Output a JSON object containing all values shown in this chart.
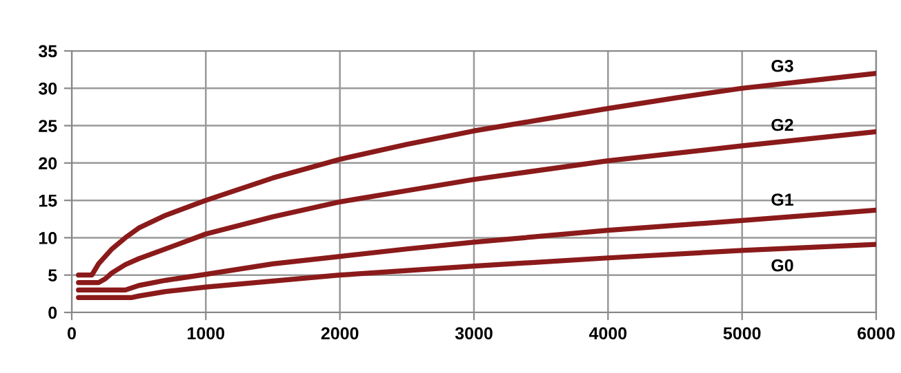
{
  "chart_data": {
    "type": "line",
    "xlim": [
      0,
      6000
    ],
    "ylim": [
      0,
      35
    ],
    "xticks": [
      0,
      1000,
      2000,
      3000,
      4000,
      5000,
      6000
    ],
    "yticks": [
      0,
      5,
      10,
      15,
      20,
      25,
      30,
      35
    ],
    "grid": true,
    "legend": false,
    "marker": "none",
    "line_style": "solid",
    "series": [
      {
        "name": "G3",
        "color": "#8b1a1a",
        "x": [
          50,
          150,
          200,
          300,
          400,
          500,
          700,
          1000,
          1500,
          2000,
          2500,
          3000,
          3500,
          4000,
          4500,
          5000,
          5500,
          6000
        ],
        "values": [
          5,
          5,
          6.5,
          8.5,
          10,
          11.3,
          13,
          15,
          18,
          20.5,
          22.5,
          24.3,
          25.8,
          27.3,
          28.7,
          30,
          31,
          32
        ]
      },
      {
        "name": "G2",
        "color": "#8b1a1a",
        "x": [
          50,
          200,
          250,
          300,
          400,
          500,
          700,
          1000,
          1500,
          2000,
          2500,
          3000,
          4000,
          5000,
          6000
        ],
        "values": [
          4,
          4,
          4.5,
          5.3,
          6.4,
          7.2,
          8.5,
          10.5,
          12.8,
          14.8,
          16.3,
          17.8,
          20.3,
          22.3,
          24.2
        ]
      },
      {
        "name": "G1",
        "color": "#8b1a1a",
        "x": [
          50,
          400,
          500,
          700,
          1000,
          1500,
          2000,
          2500,
          3000,
          4000,
          5000,
          6000
        ],
        "values": [
          3,
          3,
          3.6,
          4.3,
          5.1,
          6.5,
          7.5,
          8.5,
          9.4,
          11,
          12.3,
          13.7
        ]
      },
      {
        "name": "G0",
        "color": "#8b1a1a",
        "x": [
          50,
          450,
          500,
          700,
          1000,
          1500,
          2000,
          2500,
          3000,
          4000,
          5000,
          6000
        ],
        "values": [
          2,
          2,
          2.2,
          2.8,
          3.4,
          4.2,
          5,
          5.6,
          6.2,
          7.3,
          8.3,
          9.1
        ]
      }
    ]
  }
}
